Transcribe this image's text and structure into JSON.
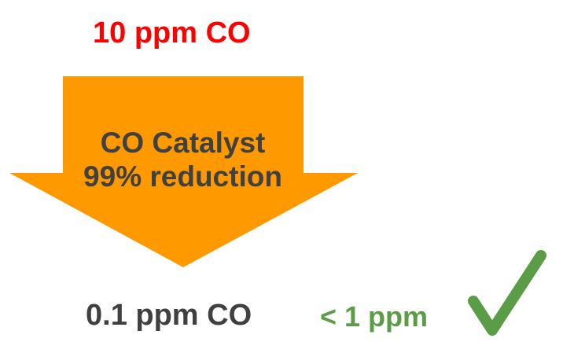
{
  "input": {
    "label": "10 ppm CO",
    "color": "#ff0000"
  },
  "catalyst": {
    "line1": "CO Catalyst",
    "line2": "99% reduction",
    "arrow_color": "#ff9900",
    "text_color": "#404040"
  },
  "output": {
    "label": "0.1 ppm CO",
    "color": "#404040"
  },
  "limit": {
    "label": "< 1 ppm",
    "color": "#5b9d46",
    "icon": "checkmark-icon"
  }
}
